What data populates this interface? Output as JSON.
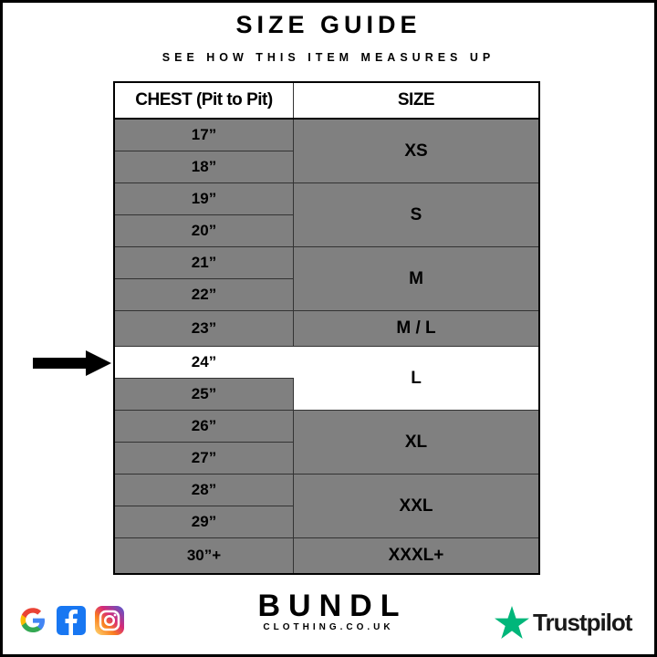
{
  "header": {
    "title": "SIZE GUIDE",
    "subtitle": "SEE HOW THIS ITEM MEASURES UP"
  },
  "table": {
    "columns": [
      "CHEST (Pit to Pit)",
      "SIZE"
    ],
    "chest": [
      "17”",
      "18”",
      "19”",
      "20”",
      "21”",
      "22”",
      "23”",
      "24”",
      "25”",
      "26”",
      "27”",
      "28”",
      "29”",
      "30”+"
    ],
    "sizes": [
      "XS",
      "S",
      "M",
      "M / L",
      "L",
      "XL",
      "XXL",
      "XXXL+"
    ],
    "highlighted": {
      "chest": "24”",
      "size": "L"
    },
    "colors": {
      "cell": "#808080",
      "highlight": "#ffffff"
    }
  },
  "footer": {
    "social_icons": [
      "google-icon",
      "facebook-icon",
      "instagram-icon"
    ],
    "brand": {
      "name": "BUNDL",
      "domain": "CLOTHING.CO.UK"
    },
    "trustpilot": {
      "label": "Trustpilot",
      "color": "#00b67a"
    }
  }
}
